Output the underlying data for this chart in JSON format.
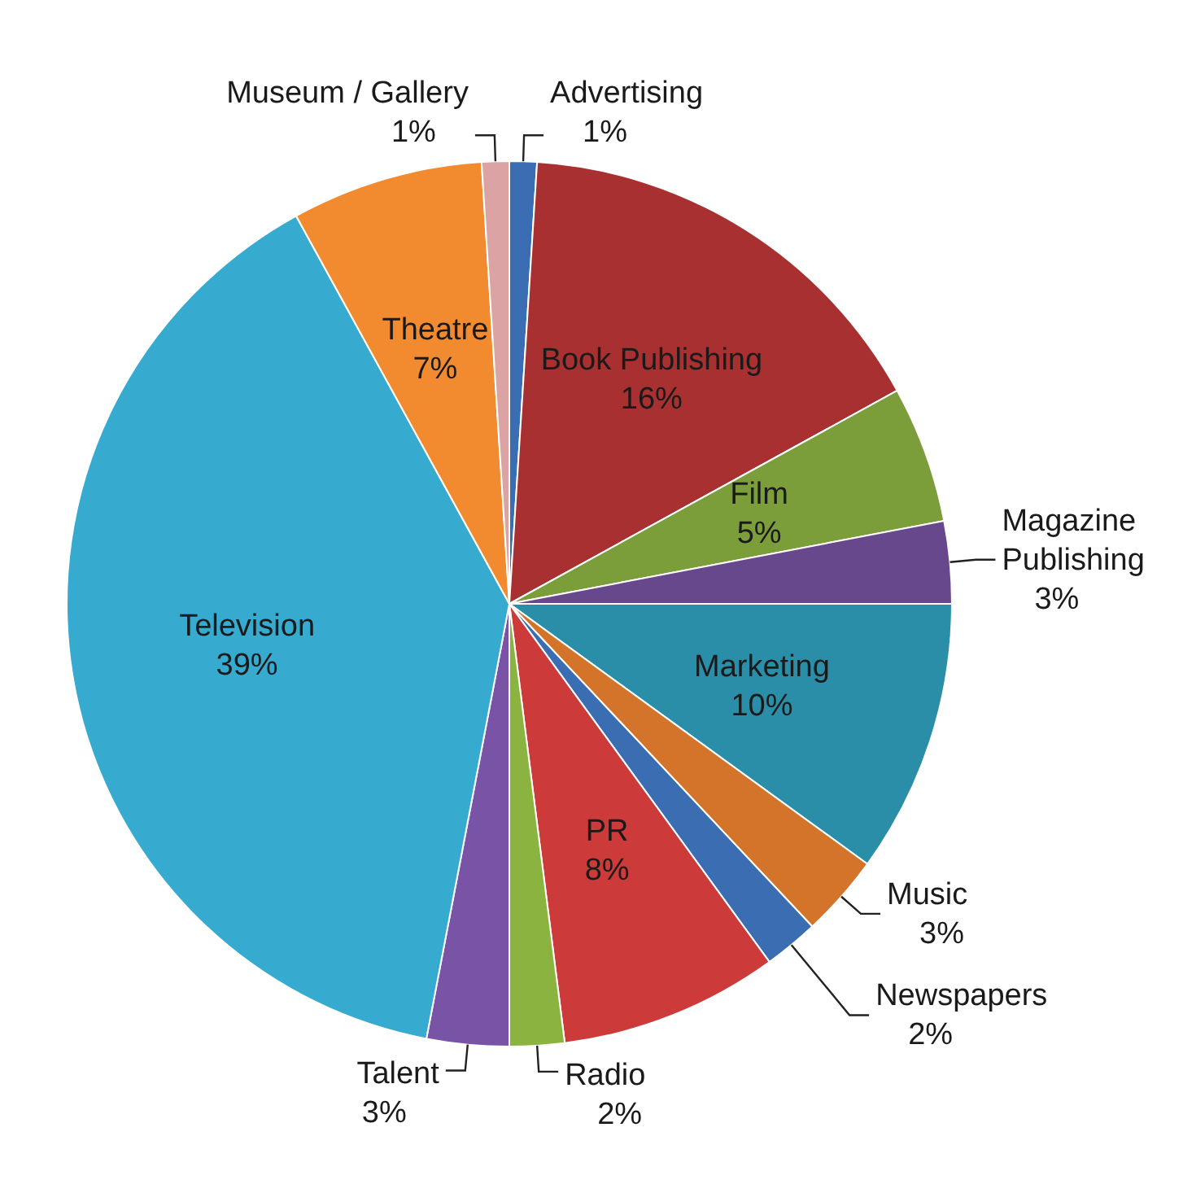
{
  "chart_data": {
    "type": "pie",
    "categories": [
      "Advertising",
      "Book Publishing",
      "Film",
      "Magazine Publishing",
      "Marketing",
      "Music",
      "Newspapers",
      "PR",
      "Radio",
      "Talent",
      "Television",
      "Theatre",
      "Museum / Gallery"
    ],
    "values": [
      1,
      16,
      5,
      3,
      10,
      3,
      2,
      8,
      2,
      3,
      39,
      7,
      1
    ],
    "value_labels": [
      "1%",
      "16%",
      "5%",
      "3%",
      "10%",
      "3%",
      "2%",
      "8%",
      "2%",
      "3%",
      "39%",
      "7%",
      "1%"
    ],
    "colors": [
      "#3b6db3",
      "#a83030",
      "#7c9e3a",
      "#68488c",
      "#2b8ea8",
      "#d4742a",
      "#3b6db3",
      "#cc3a3a",
      "#8ab43f",
      "#7953a6",
      "#37abcf",
      "#f28b2f",
      "#dba3a3"
    ]
  }
}
